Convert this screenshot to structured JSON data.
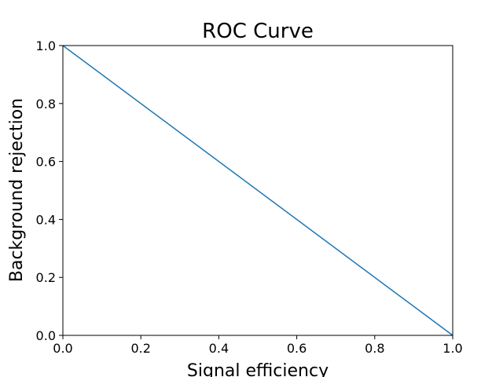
{
  "chart_data": {
    "type": "line",
    "title": "ROC Curve",
    "xlabel": "Signal efficiency",
    "ylabel": "Background rejection",
    "xlim": [
      0.0,
      1.0
    ],
    "ylim": [
      0.0,
      1.0
    ],
    "xticks": [
      "0.0",
      "0.2",
      "0.4",
      "0.6",
      "0.8",
      "1.0"
    ],
    "yticks": [
      "0.0",
      "0.2",
      "0.4",
      "0.6",
      "0.8",
      "1.0"
    ],
    "grid": false,
    "series": [
      {
        "color": "#1f77b4",
        "x": [
          0.0,
          1.0
        ],
        "y": [
          1.0,
          0.0
        ]
      }
    ]
  }
}
